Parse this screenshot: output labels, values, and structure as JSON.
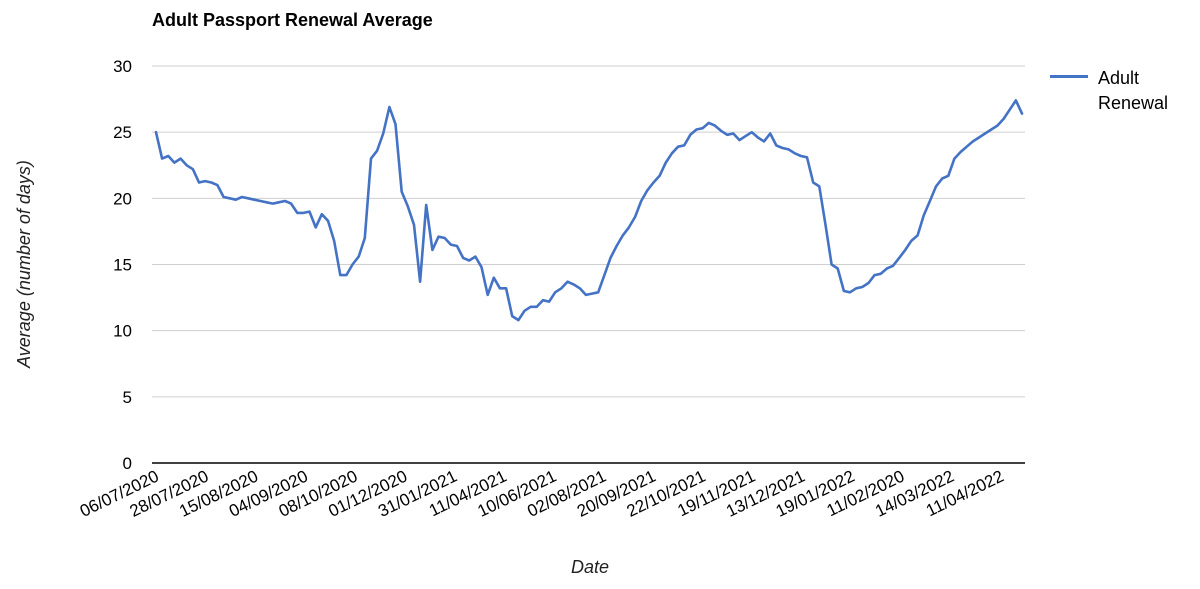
{
  "chart_data": {
    "type": "line",
    "title": "Adult Passport Renewal Average",
    "xlabel": "Date",
    "ylabel": "Average (number of days)",
    "ylim": [
      0,
      30
    ],
    "yticks": [
      0,
      5,
      10,
      15,
      20,
      25,
      30
    ],
    "grid": true,
    "legend_position": "right",
    "x_tick_labels": [
      "06/07/2020",
      "28/07/2020",
      "15/08/2020",
      "04/09/2020",
      "08/10/2020",
      "01/12/2020",
      "31/01/2021",
      "11/04/2021",
      "10/06/2021",
      "02/08/2021",
      "20/09/2021",
      "22/10/2021",
      "19/11/2021",
      "13/12/2021",
      "19/01/2022",
      "11/02/2020",
      "14/03/2022",
      "11/04/2022"
    ],
    "series": [
      {
        "name": "Adult Renewal",
        "color": "#4472c4",
        "values": [
          25.0,
          23.0,
          23.2,
          22.7,
          23.0,
          22.5,
          22.2,
          21.2,
          21.3,
          21.2,
          21.0,
          20.1,
          20.0,
          19.9,
          20.1,
          20.0,
          19.9,
          19.8,
          19.7,
          19.6,
          19.7,
          19.8,
          19.6,
          18.9,
          18.9,
          19.0,
          17.8,
          18.8,
          18.3,
          16.8,
          14.2,
          14.2,
          15.0,
          15.6,
          17.0,
          23.0,
          23.6,
          24.9,
          26.9,
          25.6,
          20.5,
          19.4,
          18.0,
          13.7,
          19.5,
          16.1,
          17.1,
          17.0,
          16.5,
          16.4,
          15.5,
          15.3,
          15.6,
          14.8,
          12.7,
          14.0,
          13.2,
          13.2,
          11.1,
          10.8,
          11.5,
          11.8,
          11.8,
          12.3,
          12.2,
          12.9,
          13.2,
          13.7,
          13.5,
          13.2,
          12.7,
          12.8,
          12.9,
          14.2,
          15.5,
          16.4,
          17.2,
          17.8,
          18.6,
          19.8,
          20.6,
          21.2,
          21.7,
          22.7,
          23.4,
          23.9,
          24.0,
          24.8,
          25.2,
          25.3,
          25.7,
          25.5,
          25.1,
          24.8,
          24.9,
          24.4,
          24.7,
          25.0,
          24.6,
          24.3,
          24.9,
          24.0,
          23.8,
          23.7,
          23.4,
          23.2,
          23.1,
          21.2,
          20.9,
          18.0,
          15.0,
          14.7,
          13.0,
          12.9,
          13.2,
          13.3,
          13.6,
          14.2,
          14.3,
          14.7,
          14.9,
          15.5,
          16.1,
          16.8,
          17.2,
          18.7,
          19.8,
          20.9,
          21.5,
          21.7,
          23.0,
          23.5,
          23.9,
          24.3,
          24.6,
          24.9,
          25.2,
          25.5,
          26.0,
          26.7,
          27.4,
          26.4
        ]
      }
    ]
  }
}
